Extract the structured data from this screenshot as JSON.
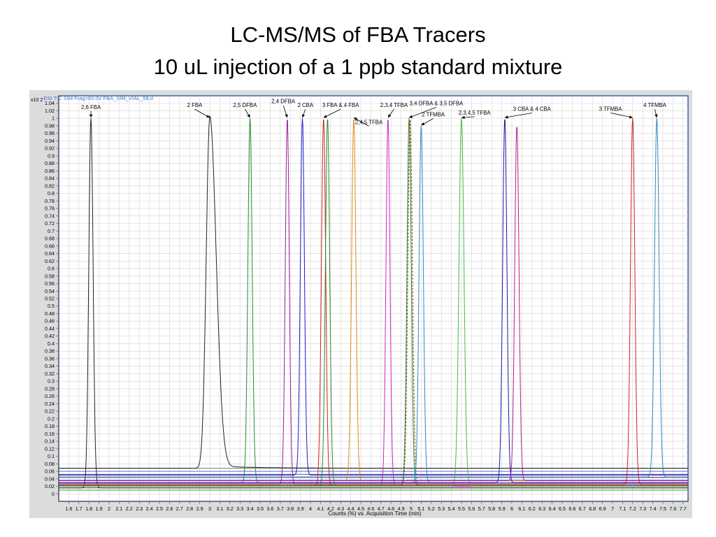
{
  "slide": {
    "title_line1": "LC-MS/MS of FBA Tracers",
    "title_line2": "10 uL injection of a 1 ppb standard mixture"
  },
  "chart_data": {
    "type": "line",
    "data_file_label": "-ESI TIC SIM Frag=60.0V FBA_SIM_VIAL_58.d",
    "y_exponent_label": "x10 2",
    "xlabel": "Counts (%) vs. Acquisition Time (min)",
    "xlim": [
      1.5,
      7.75
    ],
    "ylim": [
      -0.02,
      1.06
    ],
    "x_ticks": [
      "1.6",
      "1.7",
      "1.8",
      "1.9",
      "2",
      "2.1",
      "2.2",
      "2.3",
      "2.4",
      "2.5",
      "2.6",
      "2.7",
      "2.8",
      "2.9",
      "3",
      "3.1",
      "3.2",
      "3.3",
      "3.4",
      "3.5",
      "3.6",
      "3.7",
      "3.8",
      "3.9",
      "4",
      "4.1",
      "4.2",
      "4.3",
      "4.4",
      "4.5",
      "4.6",
      "4.7",
      "4.8",
      "4.9",
      "5",
      "5.1",
      "5.2",
      "5.3",
      "5.4",
      "5.5",
      "5.6",
      "5.7",
      "5.8",
      "5.9",
      "6",
      "6.1",
      "6.2",
      "6.3",
      "6.4",
      "6.5",
      "6.6",
      "6.7",
      "6.8",
      "6.9",
      "7",
      "7.1",
      "7.2",
      "7.3",
      "7.4",
      "7.5",
      "7.6",
      "7.7"
    ],
    "y_ticks": [
      "1.04",
      "1.02",
      "1",
      "0.98",
      "0.96",
      "0.94",
      "0.92",
      "0.9",
      "0.88",
      "0.86",
      "0.84",
      "0.82",
      "0.8",
      "0.78",
      "0.76",
      "0.74",
      "0.72",
      "0.7",
      "0.68",
      "0.66",
      "0.64",
      "0.62",
      "0.6",
      "0.58",
      "0.56",
      "0.54",
      "0.52",
      "0.5",
      "0.48",
      "0.46",
      "0.44",
      "0.42",
      "0.4",
      "0.38",
      "0.36",
      "0.34",
      "0.32",
      "0.3",
      "0.28",
      "0.26",
      "0.24",
      "0.22",
      "0.2",
      "0.18",
      "0.16",
      "0.14",
      "0.12",
      "0.1",
      "0.08",
      "0.06",
      "0.04",
      "0.02",
      "0"
    ],
    "grid": true,
    "series": [
      {
        "name": "2,6 FBA",
        "apex_time": 1.82,
        "apex_height": 1.0,
        "width": 0.03,
        "baseline": 0.016,
        "color": "#222222",
        "label_time": 1.82,
        "label_height": 1.025
      },
      {
        "name": "2 FBA",
        "apex_time": 3.0,
        "apex_height": 1.0,
        "width": 0.05,
        "baseline": 0.068,
        "color": "#222222",
        "tail": true,
        "label_time": 2.85,
        "label_height": 1.03
      },
      {
        "name": "2,5 DFBA",
        "apex_time": 3.4,
        "apex_height": 1.0,
        "width": 0.03,
        "baseline": 0.03,
        "color": "#2a8a2a",
        "label_time": 3.35,
        "label_height": 1.03
      },
      {
        "name": "2,4 DFBA",
        "apex_time": 3.77,
        "apex_height": 1.0,
        "width": 0.028,
        "baseline": 0.025,
        "color": "#9a1a9a",
        "label_time": 3.73,
        "label_height": 1.04
      },
      {
        "name": "2 CBA",
        "apex_time": 3.92,
        "apex_height": 1.0,
        "width": 0.028,
        "baseline": 0.05,
        "color": "#1a1acc",
        "label_time": 3.95,
        "label_height": 1.03
      },
      {
        "name": "3 FBA & 4 FBA",
        "apex_time": 4.13,
        "apex_height": 1.0,
        "width": 0.03,
        "baseline": 0.02,
        "color": "#cc2222",
        "label_time": 4.3,
        "label_height": 1.03
      },
      {
        "name": "3 FBA & 4 FBA",
        "apex_time": 4.17,
        "apex_height": 1.0,
        "width": 0.03,
        "baseline": 0.02,
        "color": "#2a8a2a",
        "label_time": 4.3,
        "label_height": 1.03
      },
      {
        "name": "2,4,5 TFBA",
        "apex_time": 4.43,
        "apex_height": 1.0,
        "width": 0.03,
        "baseline": 0.035,
        "color": "#e08a1a",
        "label_time": 4.58,
        "label_height": 0.985
      },
      {
        "name": "2,3,4 TFBA",
        "apex_time": 4.77,
        "apex_height": 1.0,
        "width": 0.028,
        "baseline": 0.02,
        "color": "#cc22cc",
        "label_time": 4.83,
        "label_height": 1.03
      },
      {
        "name": "3,4 DFBA & 3,5 DFBA",
        "apex_time": 4.98,
        "apex_height": 1.0,
        "width": 0.03,
        "baseline": 0.022,
        "color": "#2a8a2a",
        "label_time": 5.25,
        "label_height": 1.035
      },
      {
        "name": "3,4 DFBA & 3,5 DFBA",
        "apex_time": 4.99,
        "apex_height": 1.0,
        "width": 0.032,
        "baseline": 0.022,
        "color": "#8b3a1a",
        "dashed": true,
        "label_time": 5.25,
        "label_height": 1.035
      },
      {
        "name": "2 TFMBA",
        "apex_time": 5.1,
        "apex_height": 0.98,
        "width": 0.03,
        "baseline": 0.03,
        "color": "#2a8ac8",
        "label_time": 5.22,
        "label_height": 1.005
      },
      {
        "name": "2,3,4,5 TFBA",
        "apex_time": 5.5,
        "apex_height": 1.0,
        "width": 0.035,
        "baseline": 0.02,
        "color": "#44bb44",
        "label_time": 5.63,
        "label_height": 1.01
      },
      {
        "name": "3 CBA & 4 CBA",
        "apex_time": 5.93,
        "apex_height": 1.0,
        "width": 0.03,
        "baseline": 0.03,
        "color": "#1a1aaa",
        "label_time": 6.2,
        "label_height": 1.02
      },
      {
        "name": "3 CBA & 4 CBA",
        "apex_time": 6.05,
        "apex_height": 0.98,
        "width": 0.03,
        "baseline": 0.035,
        "color": "#b02090",
        "label_time": 6.2,
        "label_height": 1.02
      },
      {
        "name": "3 TFMBA",
        "apex_time": 7.2,
        "apex_height": 1.0,
        "width": 0.03,
        "baseline": 0.025,
        "color": "#cc2222",
        "label_time": 6.98,
        "label_height": 1.02
      },
      {
        "name": "4 TFMBA",
        "apex_time": 7.44,
        "apex_height": 1.0,
        "width": 0.032,
        "baseline": 0.045,
        "color": "#2a8ac8",
        "label_time": 7.42,
        "label_height": 1.03
      }
    ],
    "baseline_traces": [
      {
        "level": 0.068,
        "color": "#777777"
      },
      {
        "level": 0.06,
        "color": "#3a5acc"
      },
      {
        "level": 0.052,
        "color": "#7a2a7a"
      },
      {
        "level": 0.044,
        "color": "#2a2a6a"
      },
      {
        "level": 0.036,
        "color": "#1a1acc"
      },
      {
        "level": 0.028,
        "color": "#cc22cc"
      },
      {
        "level": 0.022,
        "color": "#8b1a1a"
      },
      {
        "level": 0.016,
        "color": "#1a1a1a"
      },
      {
        "level": 0.01,
        "color": "#1a8a1a"
      }
    ]
  }
}
